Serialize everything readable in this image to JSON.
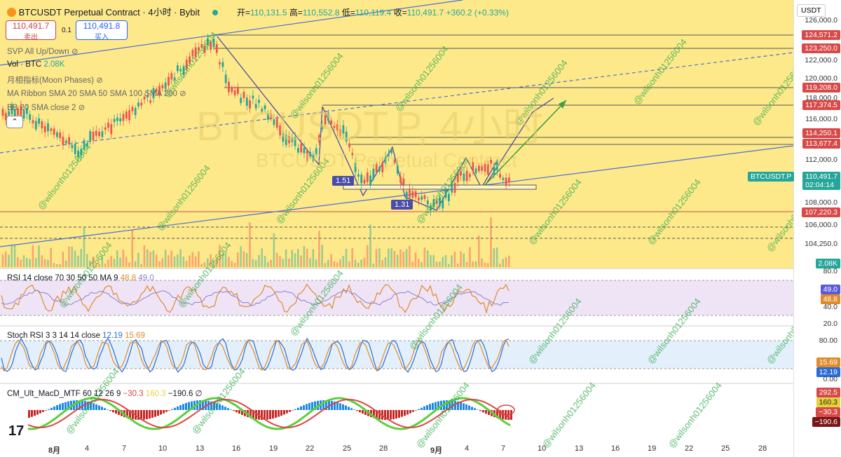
{
  "header": {
    "symbol": "BTCUSDT Perpetual Contract · 4小时 · Bybit",
    "open_label": "开=",
    "open": "110,131.5",
    "high_label": "高=",
    "high": "110,552.8",
    "low_label": "低=",
    "low": "110,119.4",
    "close_label": "收=",
    "close": "110,491.7",
    "change": "+360.2 (+0.33%)"
  },
  "order": {
    "sell_price": "110,491.7",
    "sell_label": "卖出",
    "spread": "0.1",
    "buy_price": "110,491.8",
    "buy_label": "买入"
  },
  "indicators": {
    "svp": "SVP All Up/Down",
    "vol": "Vol · BTC",
    "vol_value": "2.08K",
    "moon": "月相指标(Moon Phases)",
    "ma_ribbon": "MA Ribbon SMA 20 SMA 50 SMA 100 SMA 200",
    "bb": "BB 20 SMA close 2"
  },
  "currency": "USDT",
  "price_axis": [
    "126,000.0",
    "124,000.0",
    "122,000.0",
    "120,000.0",
    "118,000.0",
    "116,000.0",
    "114,000.0",
    "112,000.0",
    "110,000.0",
    "108,000.0",
    "106,000.0",
    "104,250.0"
  ],
  "price_tags": [
    {
      "v": "124,571.2",
      "c": "#d84a4a"
    },
    {
      "v": "123,250.0",
      "c": "#d84a4a"
    },
    {
      "v": "119,208.0",
      "c": "#d84a4a"
    },
    {
      "v": "117,374.5",
      "c": "#d84a4a"
    },
    {
      "v": "114,250.1",
      "c": "#d84a4a"
    },
    {
      "v": "113,677.4",
      "c": "#d84a4a"
    },
    {
      "v": "107,220.3",
      "c": "#d84a4a"
    },
    {
      "v": "2.08K",
      "c": "#26a69a"
    }
  ],
  "last_price": {
    "symbol": "BTCUSDT.P",
    "price": "110,491.7",
    "countdown": "02:04:14"
  },
  "ratio_labels": [
    "1.51",
    "1.31"
  ],
  "rsi": {
    "label": "RSI 14 close 70 30 50 50 MA 9",
    "v1": "48.8",
    "v2": "49.0",
    "axis": [
      "80.0",
      "40.0",
      "20.0"
    ],
    "tag1": "49.0",
    "tag2": "48.8"
  },
  "stoch": {
    "label": "Stoch RSI 3 3 14 14 close",
    "k": "12.19",
    "d": "15.69",
    "axis": [
      "80.00",
      "0.00"
    ],
    "tag_d": "15.69",
    "tag_k": "12.19"
  },
  "macd": {
    "label": "CM_Ult_MacD_MTF 60 12 26 9",
    "v1": "−30.3",
    "v2": "160.3",
    "v3": "−190.6",
    "extra": "∅",
    "tags": [
      "292.5",
      "160.3",
      "−30.3",
      "−190.6"
    ]
  },
  "x_axis": [
    "8月",
    "4",
    "7",
    "10",
    "13",
    "16",
    "19",
    "22",
    "25",
    "28",
    "9月",
    "4",
    "7",
    "10",
    "13",
    "16",
    "19",
    "22",
    "25",
    "28"
  ],
  "watermark": "@wilsonh01256004",
  "bg_text": "BTCUSDT.P, 4小时",
  "bg_text2": "BTCUSDT Perpetual Contract",
  "chart_data": {
    "type": "candlestick",
    "symbol": "BTCUSDT.P",
    "interval": "4h",
    "ohlc_last": {
      "open": 110131.5,
      "high": 110552.8,
      "low": 110119.4,
      "close": 110491.7
    },
    "ylim": [
      103500,
      127500
    ],
    "levels": [
      124571.2,
      123250.0,
      119208.0,
      117374.5,
      114250.1,
      113677.4,
      107220.3
    ]
  }
}
